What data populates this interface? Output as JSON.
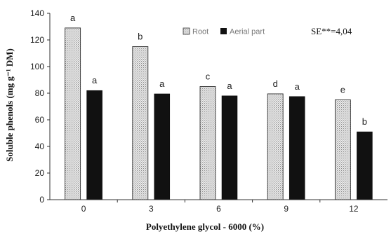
{
  "chart_data": {
    "type": "bar",
    "xlabel": "Polyethylene glycol - 6000 (%)",
    "ylabel": "Soluble phenols (mg g⁻¹ DM)",
    "categories": [
      "0",
      "3",
      "6",
      "9",
      "12"
    ],
    "ylim": [
      0,
      140
    ],
    "yticks": [
      "0",
      "20",
      "40",
      "60",
      "80",
      "100",
      "120",
      "140"
    ],
    "series": [
      {
        "name": "Root",
        "values": [
          129,
          115,
          85,
          79.5,
          75
        ],
        "letters": [
          "a",
          "b",
          "c",
          "d",
          "e"
        ],
        "color": "#e6e6e6"
      },
      {
        "name": "Aerial part",
        "values": [
          82,
          79.5,
          78,
          77.5,
          51
        ],
        "letters": [
          "a",
          "a",
          "a",
          "a",
          "b"
        ],
        "color": "#111111"
      }
    ],
    "annotation": "SE**=4,04",
    "grid": false,
    "legend": "top-center"
  }
}
